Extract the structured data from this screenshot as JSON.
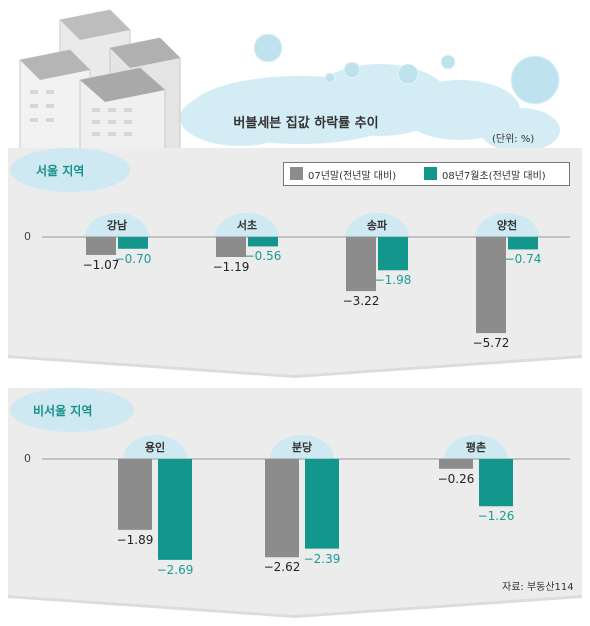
{
  "title": "버블세븐 집값 하락률 추이",
  "unit": "(단위: %)",
  "source": "자료: 부동산114",
  "colors": {
    "series1": "#8c8c8c",
    "series2": "#13968c",
    "bubble": "#cfe9f2",
    "panel": "#ececec"
  },
  "chart_data": [
    {
      "type": "bar",
      "panel_label": "서울 지역",
      "zero_label": "0",
      "categories": [
        "강남",
        "서초",
        "송파",
        "양천"
      ],
      "series": [
        {
          "name": "07년말(전년말 대비)",
          "values": [
            -1.07,
            -1.19,
            -3.22,
            -5.72
          ],
          "labels": [
            "−1.07",
            "−1.19",
            "−3.22",
            "−5.72"
          ]
        },
        {
          "name": "08년7월초(전년말 대비)",
          "values": [
            -0.7,
            -0.56,
            -1.98,
            -0.74
          ],
          "labels": [
            "−0.70",
            "−0.56",
            "−1.98",
            "−0.74"
          ]
        }
      ],
      "legend": "top-right"
    },
    {
      "type": "bar",
      "panel_label": "비서울 지역",
      "zero_label": "0",
      "categories": [
        "용인",
        "분당",
        "평촌"
      ],
      "series": [
        {
          "name": "07년말(전년말 대비)",
          "values": [
            -1.89,
            -2.62,
            -0.26
          ],
          "labels": [
            "−1.89",
            "−2.62",
            "−0.26"
          ]
        },
        {
          "name": "08년7월초(전년말 대비)",
          "values": [
            -2.69,
            -2.39,
            -1.26
          ],
          "labels": [
            "−2.69",
            "−2.39",
            "−1.26"
          ]
        }
      ]
    }
  ]
}
